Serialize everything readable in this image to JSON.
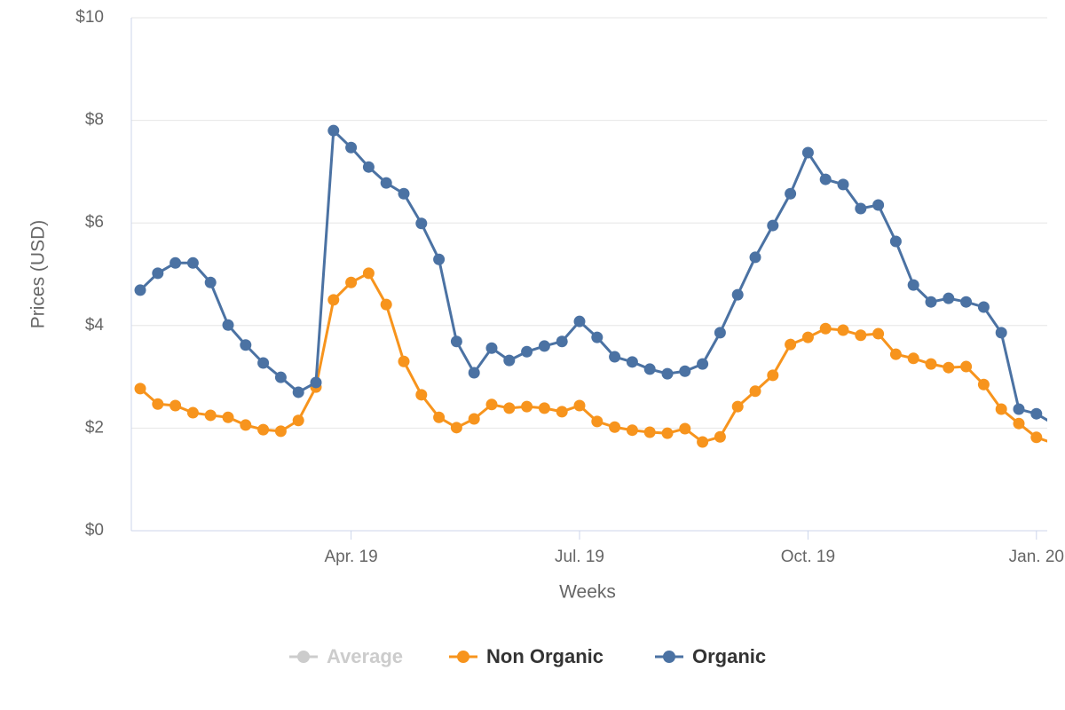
{
  "chart_data": {
    "type": "line",
    "x_label": "Weeks",
    "y_label": "Prices (USD)",
    "categories": [
      null,
      null,
      null,
      null,
      null,
      null,
      null,
      null,
      null,
      null,
      null,
      null,
      "Apr. 19",
      null,
      null,
      null,
      null,
      null,
      null,
      null,
      null,
      null,
      null,
      null,
      null,
      "Jul. 19",
      null,
      null,
      null,
      null,
      null,
      null,
      null,
      null,
      null,
      null,
      null,
      null,
      "Oct. 19",
      null,
      null,
      null,
      null,
      null,
      null,
      null,
      null,
      null,
      null,
      null,
      null,
      "Jan. 20",
      null
    ],
    "ylim": [
      0,
      10
    ],
    "yticks": [
      {
        "value": 0,
        "label": "$0"
      },
      {
        "value": 2,
        "label": "$2"
      },
      {
        "value": 4,
        "label": "$4"
      },
      {
        "value": 6,
        "label": "$6"
      },
      {
        "value": 8,
        "label": "$8"
      },
      {
        "value": 10,
        "label": "$10"
      }
    ],
    "grid": true,
    "series": [
      {
        "name": "Average",
        "color": "#cccccc",
        "visible": false
      },
      {
        "name": "Non Organic",
        "color": "#f7941d",
        "visible": true,
        "values": [
          2.77,
          2.47,
          2.44,
          2.3,
          2.25,
          2.21,
          2.06,
          1.97,
          1.94,
          2.15,
          2.8,
          4.5,
          4.84,
          5.02,
          4.41,
          3.3,
          2.65,
          2.21,
          2.01,
          2.18,
          2.46,
          2.39,
          2.42,
          2.39,
          2.32,
          2.44,
          2.13,
          2.02,
          1.96,
          1.92,
          1.9,
          1.99,
          1.73,
          1.83,
          2.42,
          2.72,
          3.03,
          3.63,
          3.77,
          3.94,
          3.91,
          3.81,
          3.84,
          3.44,
          3.36,
          3.25,
          3.18,
          3.2,
          2.85,
          2.37,
          2.09,
          1.82,
          1.7
        ]
      },
      {
        "name": "Organic",
        "color": "#4b72a3",
        "visible": true,
        "values": [
          4.69,
          5.02,
          5.22,
          5.22,
          4.84,
          4.01,
          3.62,
          3.27,
          2.99,
          2.7,
          2.89,
          7.8,
          7.47,
          7.09,
          6.78,
          6.57,
          5.99,
          5.29,
          3.69,
          3.08,
          3.56,
          3.32,
          3.49,
          3.6,
          3.69,
          4.08,
          3.77,
          3.39,
          3.29,
          3.15,
          3.06,
          3.11,
          3.25,
          3.86,
          4.6,
          5.33,
          5.95,
          6.57,
          7.37,
          6.85,
          6.75,
          6.28,
          6.35,
          5.64,
          4.79,
          4.46,
          4.53,
          4.46,
          4.36,
          3.86,
          2.37,
          2.28,
          2.08
        ]
      }
    ]
  }
}
